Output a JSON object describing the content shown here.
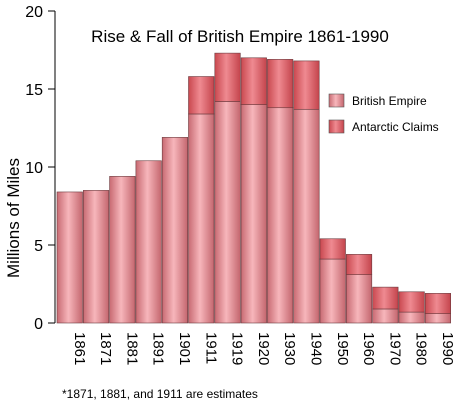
{
  "chart_data": {
    "type": "bar",
    "stacked": true,
    "title": "Rise & Fall of British Empire 1861-1990",
    "xlabel": "",
    "ylabel": "Millions of Miles",
    "ylim": [
      0,
      20
    ],
    "yticks": [
      "0",
      "5",
      "10",
      "15",
      "20"
    ],
    "categories": [
      "1861",
      "1871",
      "1881",
      "1891",
      "1901",
      "1911",
      "1919",
      "1920",
      "1930",
      "1940",
      "1950",
      "1960",
      "1970",
      "1980",
      "1990"
    ],
    "series": [
      {
        "name": "British Empire",
        "color": "#f2a0a6",
        "values": [
          8.4,
          8.5,
          9.4,
          10.4,
          11.9,
          13.4,
          14.2,
          14.0,
          13.8,
          13.7,
          4.1,
          3.1,
          0.9,
          0.7,
          0.6
        ]
      },
      {
        "name": "Antarctic Claims",
        "color": "#e8747c",
        "values": [
          0,
          0,
          0,
          0,
          0,
          2.4,
          3.1,
          3.0,
          3.1,
          3.1,
          1.3,
          1.3,
          1.4,
          1.3,
          1.3
        ]
      }
    ],
    "grid": false,
    "legend_position": "right",
    "footnote": "*1871, 1881, and 1911 are estimates"
  }
}
